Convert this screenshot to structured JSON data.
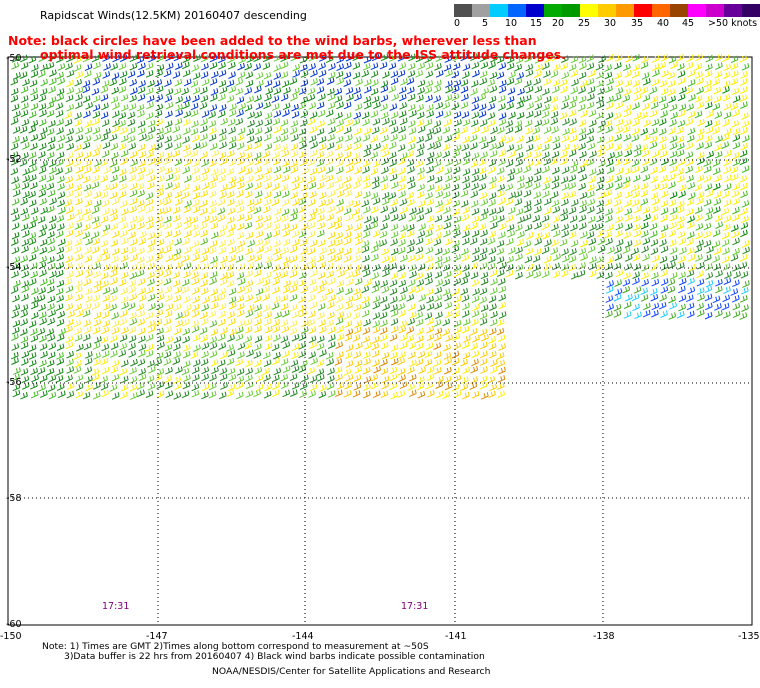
{
  "header": {
    "title": "Rapidscat Winds(12.5KM) 20160407 descending",
    "note_line1": "Note: black circles have been added to the wind barbs, wherever less than",
    "note_line2": "optimal wind retrieval conditions are met due to the ISS attitude changes."
  },
  "color_scale": {
    "unit_label": ">50 knots",
    "colors": [
      "#505050",
      "#a0a0a0",
      "#00ccff",
      "#0066ff",
      "#0000cc",
      "#00aa00",
      "#009900",
      "#ffff00",
      "#ffcc00",
      "#ff9900",
      "#ff0000",
      "#ff6600",
      "#994400",
      "#ff00ff",
      "#cc00cc",
      "#660099",
      "#330066"
    ],
    "labels": [
      "0",
      "5",
      "10",
      "15",
      "20",
      "25",
      "30",
      "35",
      "40",
      "45",
      ">50 knots"
    ]
  },
  "map": {
    "lat_labels": [
      "-50",
      "-52",
      "-54",
      "-56",
      "-58",
      "-60"
    ],
    "lon_labels": [
      "-150",
      "-147",
      "-144",
      "-141",
      "-138",
      "-135"
    ],
    "time_labels": [
      "17:31",
      "17:31"
    ]
  },
  "footer": {
    "line1": "Note: 1) Times are GMT 2)Times along bottom correspond to measurement at ~50S",
    "line2": "3)Data buffer is 22 hrs from 20160407 4) Black wind barbs indicate possible contamination",
    "line3": "NOAA/NESDIS/Center for Satellite Applications and Research"
  }
}
